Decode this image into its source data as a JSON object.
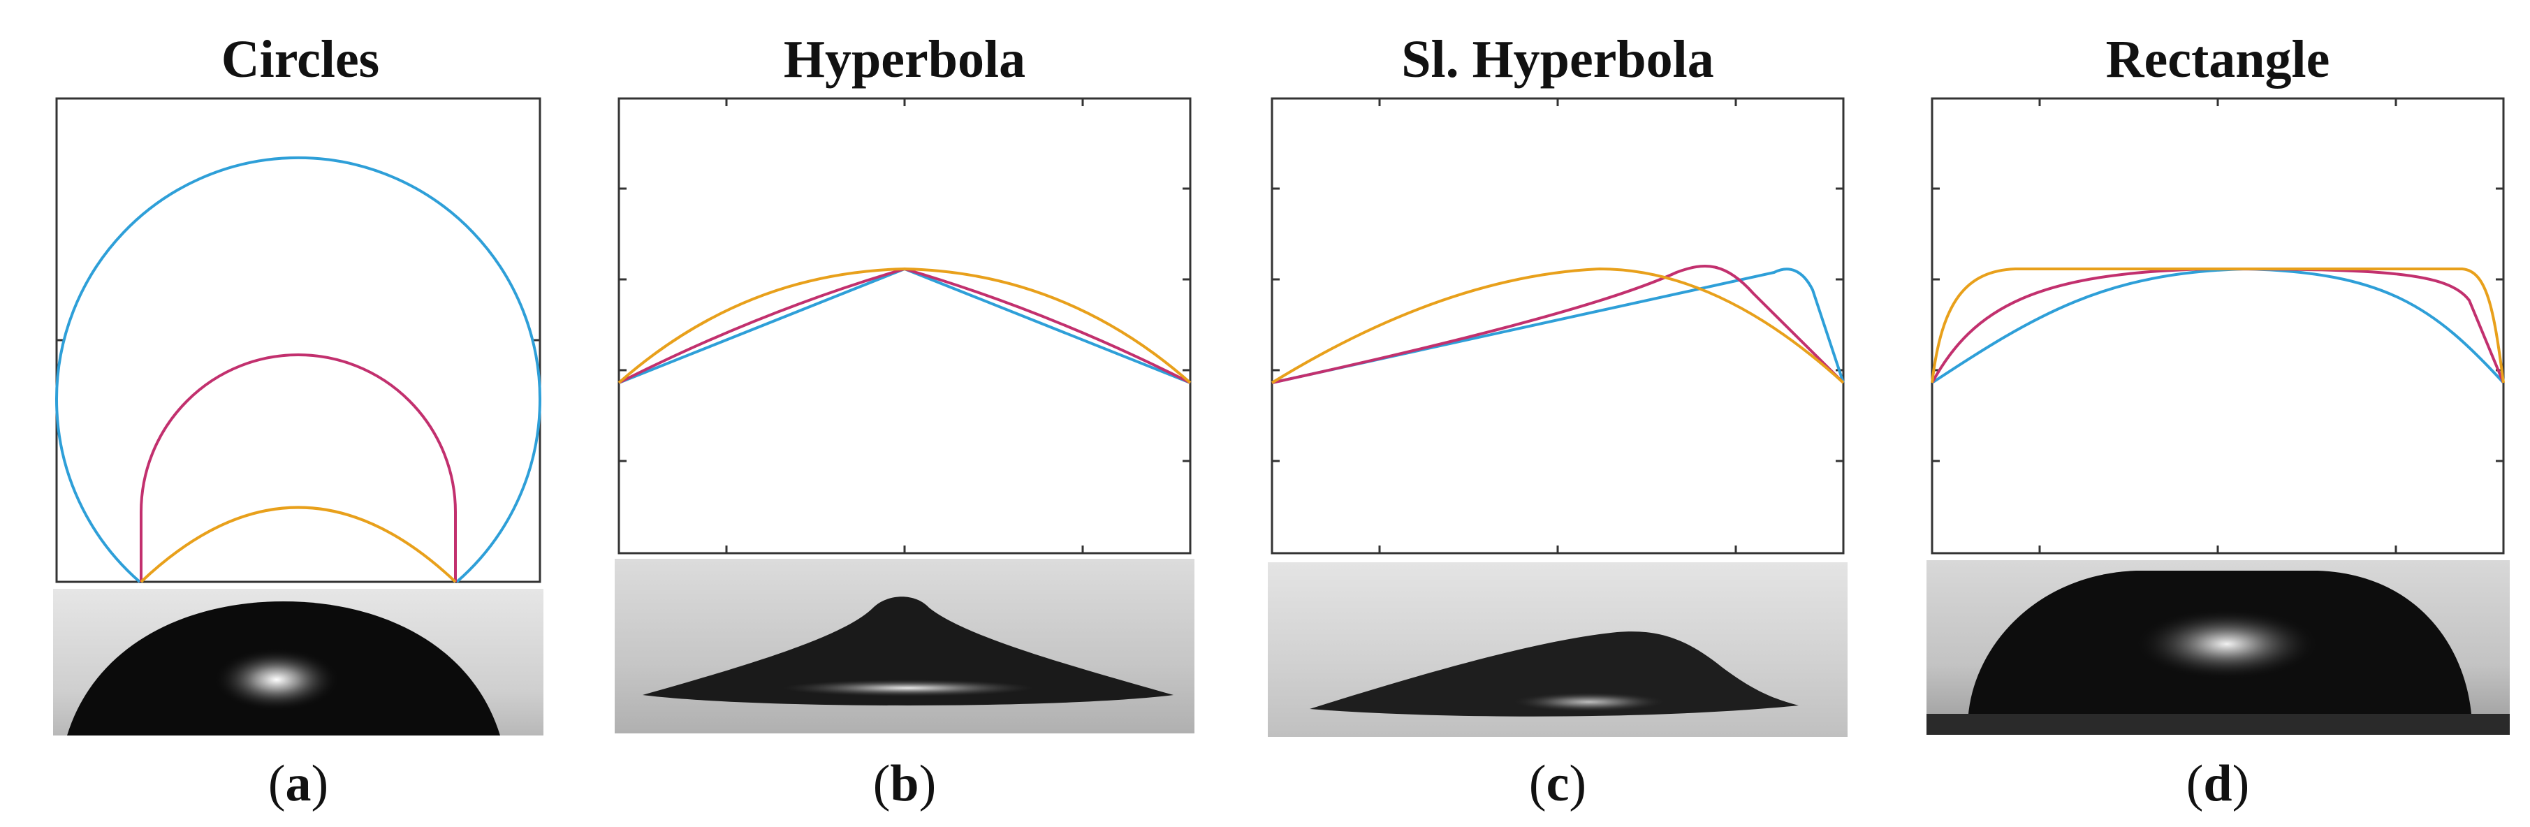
{
  "panels": [
    {
      "id": "a",
      "title": "Circles",
      "label_open": "(",
      "label_letter": "a",
      "label_close": ")"
    },
    {
      "id": "b",
      "title": "Hyperbola",
      "label_open": "(",
      "label_letter": "b",
      "label_close": ")"
    },
    {
      "id": "c",
      "title": "Sl. Hyperbola",
      "label_open": "(",
      "label_letter": "c",
      "label_close": ")"
    },
    {
      "id": "d",
      "title": "Rectangle",
      "label_open": "(",
      "label_letter": "d",
      "label_close": ")"
    }
  ],
  "colors": {
    "blue": "#2e9fd8",
    "magenta": "#c2306e",
    "orange": "#e8a01b",
    "axes": "#333333"
  }
}
